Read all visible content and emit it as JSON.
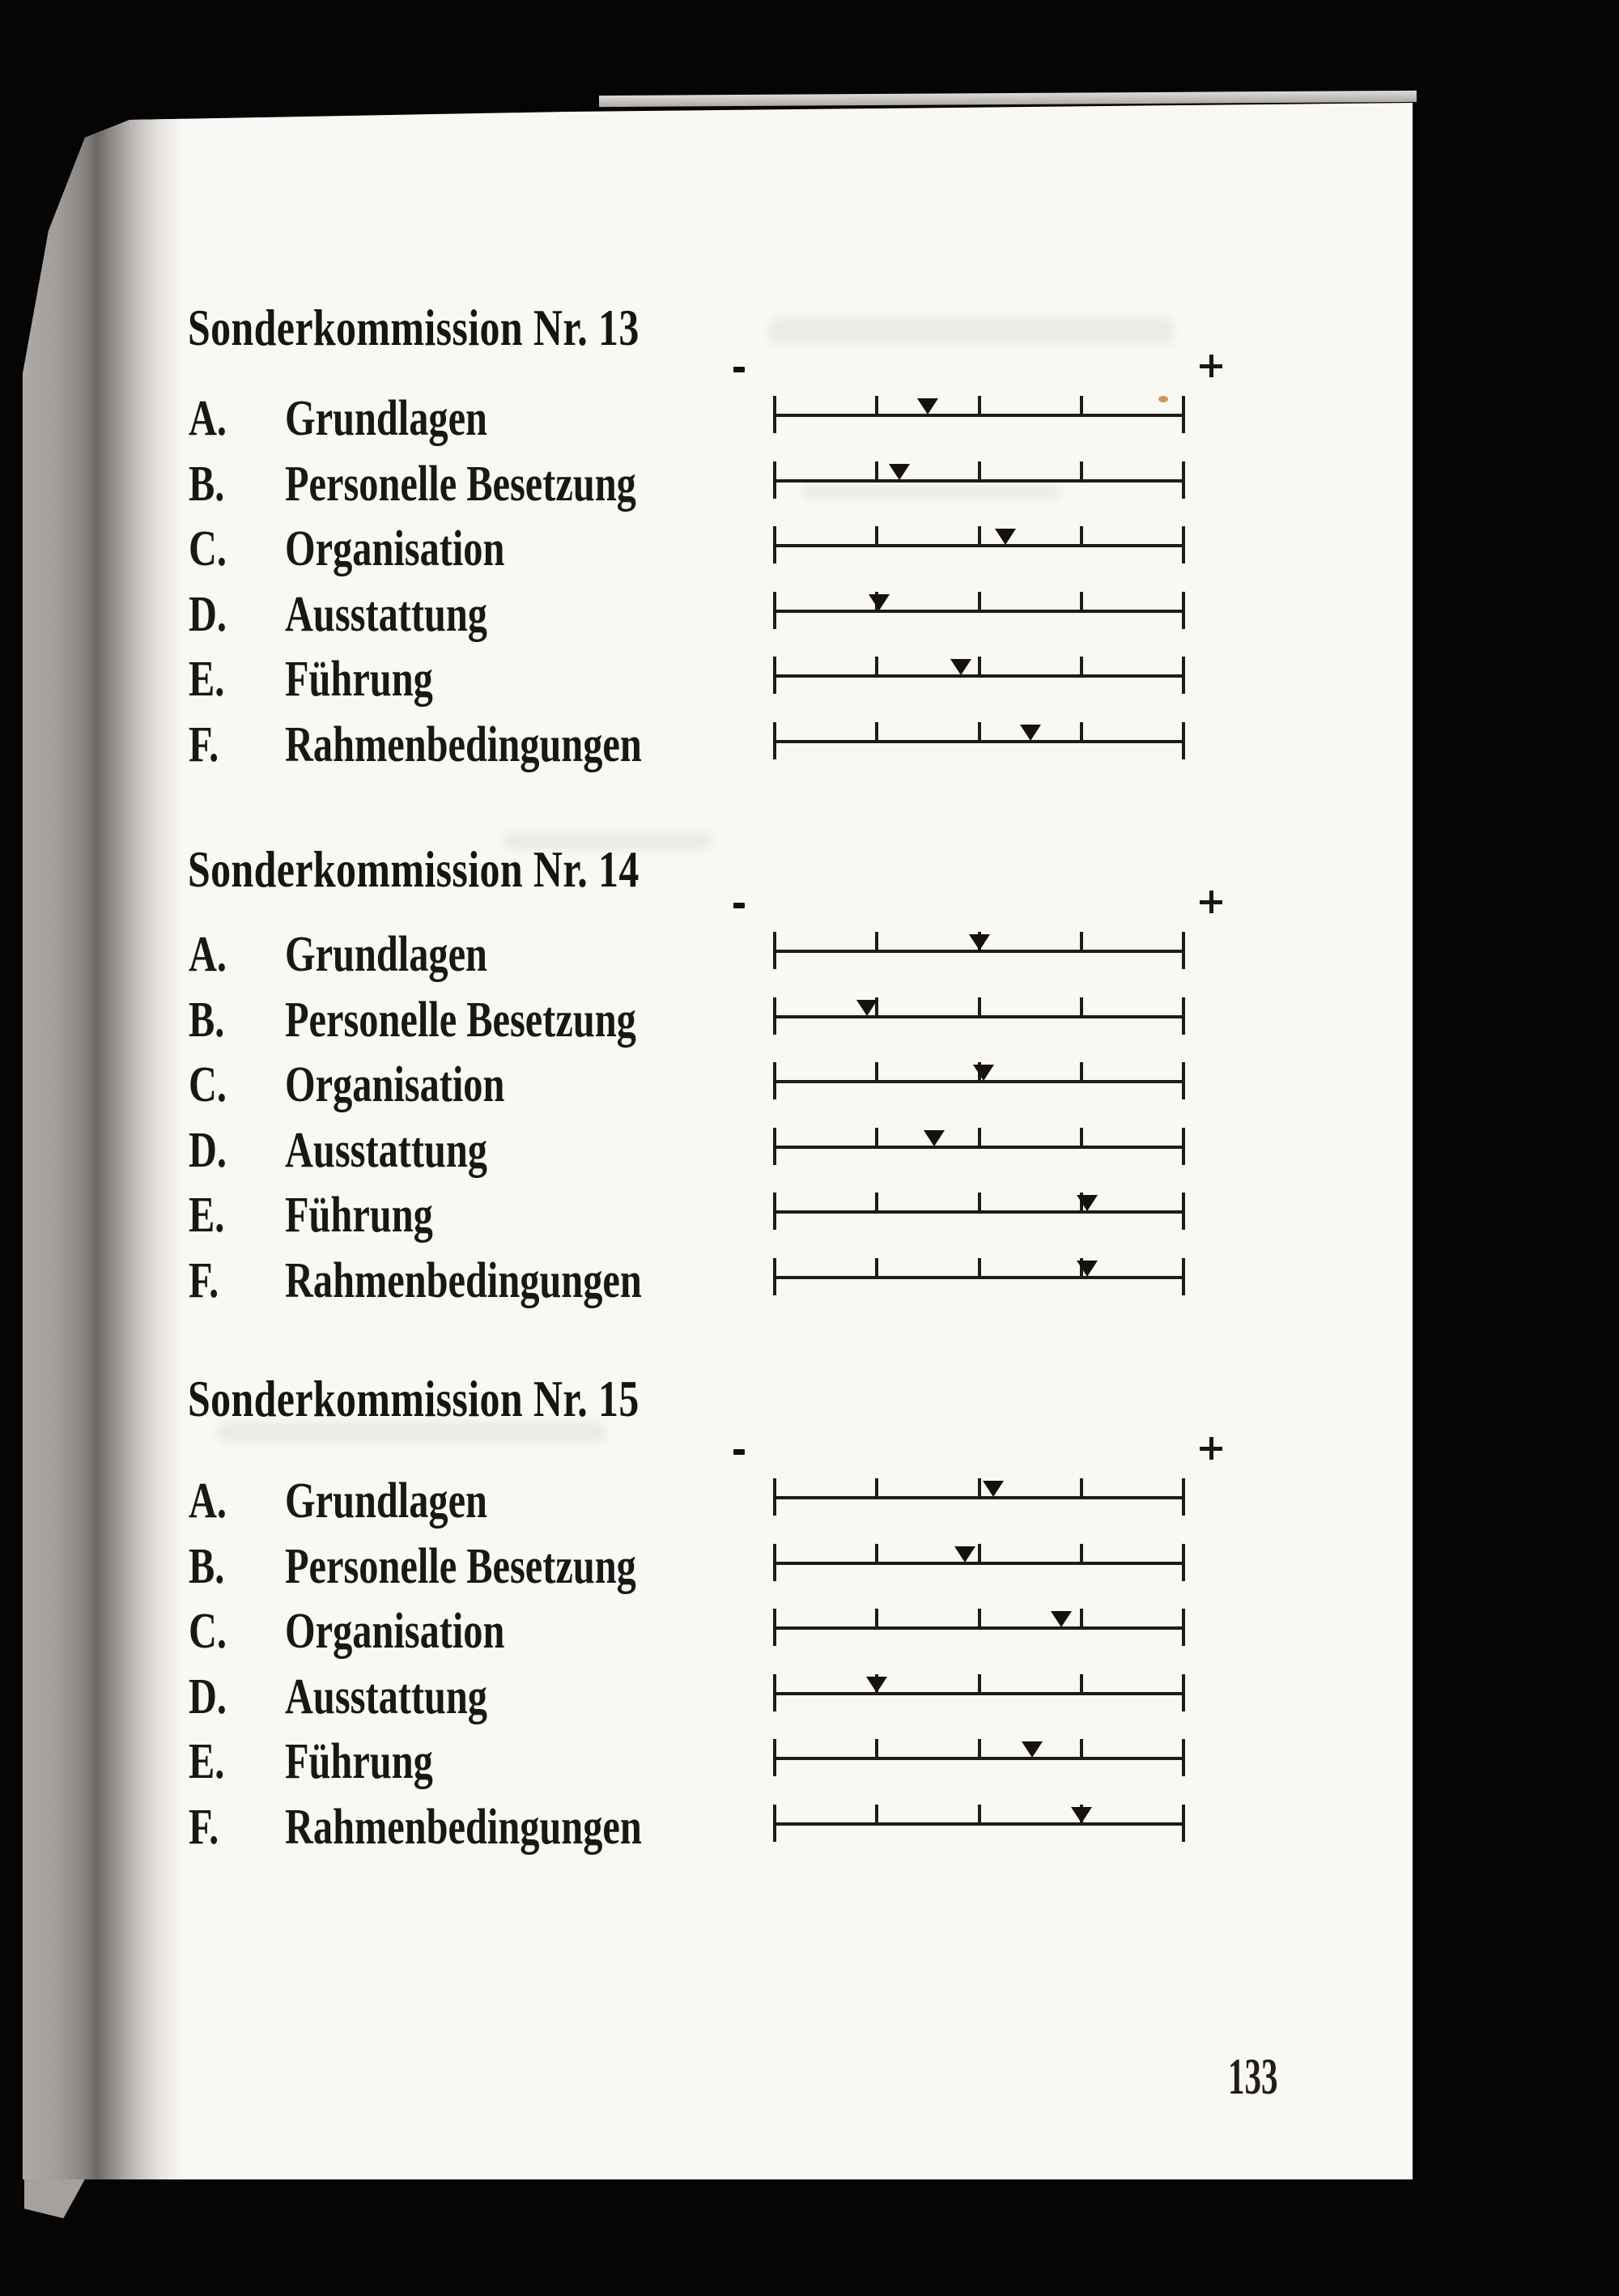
{
  "page": {
    "page_number": "133",
    "scale_minus_label": "-",
    "scale_plus_label": "+",
    "paper_color": "#f9f8f4",
    "background_color": "#050505",
    "ink_color": "#1a1816"
  },
  "sections": [
    {
      "title": "Sonderkommission Nr. 13",
      "items": [
        {
          "letter": "A.",
          "label": "Grundlagen",
          "value": 0.375
        },
        {
          "letter": "B.",
          "label": "Personelle Besetzung",
          "value": 0.305
        },
        {
          "letter": "C.",
          "label": "Organisation",
          "value": 0.565
        },
        {
          "letter": "D.",
          "label": "Ausstattung",
          "value": 0.255
        },
        {
          "letter": "E.",
          "label": "Führung",
          "value": 0.455
        },
        {
          "letter": "F.",
          "label": "Rahmenbedingungen",
          "value": 0.625
        }
      ]
    },
    {
      "title": "Sonderkommission Nr. 14",
      "items": [
        {
          "letter": "A.",
          "label": "Grundlagen",
          "value": 0.5
        },
        {
          "letter": "B.",
          "label": "Personelle Besetzung",
          "value": 0.225
        },
        {
          "letter": "C.",
          "label": "Organisation",
          "value": 0.51
        },
        {
          "letter": "D.",
          "label": "Ausstattung",
          "value": 0.39
        },
        {
          "letter": "E.",
          "label": "Führung",
          "value": 0.765
        },
        {
          "letter": "F.",
          "label": "Rahmenbedingungen",
          "value": 0.765
        }
      ]
    },
    {
      "title": "Sonderkommission Nr. 15",
      "items": [
        {
          "letter": "A.",
          "label": "Grundlagen",
          "value": 0.535
        },
        {
          "letter": "B.",
          "label": "Personelle Besetzung",
          "value": 0.465
        },
        {
          "letter": "C.",
          "label": "Organisation",
          "value": 0.7
        },
        {
          "letter": "D.",
          "label": "Ausstattung",
          "value": 0.25
        },
        {
          "letter": "E.",
          "label": "Führung",
          "value": 0.63
        },
        {
          "letter": "F.",
          "label": "Rahmenbedingungen",
          "value": 0.75
        }
      ]
    }
  ],
  "chart_data": [
    {
      "type": "scatter",
      "title": "Sonderkommission Nr. 13",
      "categories": [
        "Grundlagen",
        "Personelle Besetzung",
        "Organisation",
        "Ausstattung",
        "Führung",
        "Rahmenbedingungen"
      ],
      "values": [
        0.375,
        0.305,
        0.565,
        0.255,
        0.455,
        0.625
      ],
      "xlabel": "",
      "ylabel": "",
      "x_axis": {
        "min_label": "-",
        "max_label": "+",
        "range": [
          0,
          1
        ],
        "ticks": [
          0,
          0.25,
          0.5,
          0.75,
          1
        ]
      },
      "marker": "filled-down-triangle",
      "grid": false,
      "legend": false
    },
    {
      "type": "scatter",
      "title": "Sonderkommission Nr. 14",
      "categories": [
        "Grundlagen",
        "Personelle Besetzung",
        "Organisation",
        "Ausstattung",
        "Führung",
        "Rahmenbedingungen"
      ],
      "values": [
        0.5,
        0.225,
        0.51,
        0.39,
        0.765,
        0.765
      ],
      "xlabel": "",
      "ylabel": "",
      "x_axis": {
        "min_label": "-",
        "max_label": "+",
        "range": [
          0,
          1
        ],
        "ticks": [
          0,
          0.25,
          0.5,
          0.75,
          1
        ]
      },
      "marker": "filled-down-triangle",
      "grid": false,
      "legend": false
    },
    {
      "type": "scatter",
      "title": "Sonderkommission Nr. 15",
      "categories": [
        "Grundlagen",
        "Personelle Besetzung",
        "Organisation",
        "Ausstattung",
        "Führung",
        "Rahmenbedingungen"
      ],
      "values": [
        0.535,
        0.465,
        0.7,
        0.25,
        0.63,
        0.75
      ],
      "xlabel": "",
      "ylabel": "",
      "x_axis": {
        "min_label": "-",
        "max_label": "+",
        "range": [
          0,
          1
        ],
        "ticks": [
          0,
          0.25,
          0.5,
          0.75,
          1
        ]
      },
      "marker": "filled-down-triangle",
      "grid": false,
      "legend": false
    }
  ]
}
